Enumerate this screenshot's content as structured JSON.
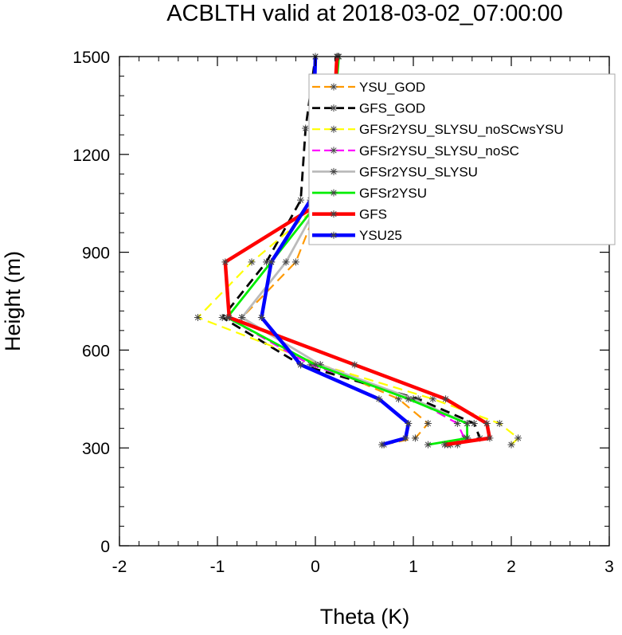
{
  "chart_data": {
    "type": "line",
    "title": "ACBLTH valid at 2018-03-02_07:00:00",
    "xlabel": "Theta (K)",
    "ylabel": "Height (m)",
    "xlim": [
      -2,
      3
    ],
    "ylim": [
      0,
      1500
    ],
    "x_ticks": [
      -2,
      -1,
      0,
      1,
      2,
      3
    ],
    "y_ticks": [
      0,
      300,
      600,
      900,
      1200,
      1500
    ],
    "grid": false,
    "legend_position": "top-right",
    "y_levels": [
      310,
      330,
      375,
      450,
      555,
      700,
      870,
      1060,
      1280,
      1500
    ],
    "series": [
      {
        "name": "YSU_GOD",
        "color": "#ff9900",
        "dash": "dashed",
        "width": 2.2,
        "values": [
          0.7,
          1.02,
          1.15,
          0.85,
          0.05,
          -0.75,
          -0.2,
          0.05,
          0.0,
          0.0
        ]
      },
      {
        "name": "GFS_GOD",
        "color": "#000000",
        "dash": "dashed",
        "width": 2.8,
        "values": [
          1.35,
          1.68,
          1.62,
          1.05,
          -0.15,
          -0.95,
          -0.5,
          -0.15,
          -0.1,
          0.0
        ]
      },
      {
        "name": "GFSr2YSU_SLYSU_noSCwsYSU",
        "color": "#ffff00",
        "dash": "dashed",
        "width": 2.2,
        "values": [
          2.0,
          2.07,
          1.88,
          1.2,
          0.05,
          -1.2,
          -0.65,
          0.1,
          0.2,
          0.23
        ]
      },
      {
        "name": "GFSr2YSU_SLYSU_noSC",
        "color": "#ff00ff",
        "dash": "dashed",
        "width": 2.2,
        "values": [
          1.38,
          1.52,
          1.45,
          1.0,
          -0.05,
          -0.9,
          -0.45,
          0.05,
          0.18,
          0.22
        ]
      },
      {
        "name": "GFSr2YSU_SLYSU",
        "color": "#bbbbbb",
        "dash": "solid",
        "width": 2.8,
        "values": [
          1.45,
          1.55,
          1.55,
          1.0,
          0.05,
          -0.75,
          -0.3,
          0.05,
          0.18,
          0.22
        ]
      },
      {
        "name": "GFSr2YSU",
        "color": "#00ee00",
        "dash": "solid",
        "width": 2.8,
        "values": [
          1.15,
          1.55,
          1.55,
          0.95,
          0.0,
          -0.9,
          -0.45,
          0.05,
          0.18,
          0.24
        ]
      },
      {
        "name": "GFS",
        "color": "#ff0000",
        "dash": "solid",
        "width": 4.5,
        "values": [
          1.32,
          1.78,
          1.75,
          1.33,
          0.4,
          -0.88,
          -0.92,
          0.1,
          0.18,
          0.22
        ]
      },
      {
        "name": "YSU25",
        "color": "#0000ff",
        "dash": "solid",
        "width": 4.5,
        "values": [
          0.68,
          0.92,
          0.95,
          0.65,
          -0.15,
          -0.55,
          -0.45,
          -0.05,
          -0.02,
          0.0
        ]
      }
    ]
  }
}
